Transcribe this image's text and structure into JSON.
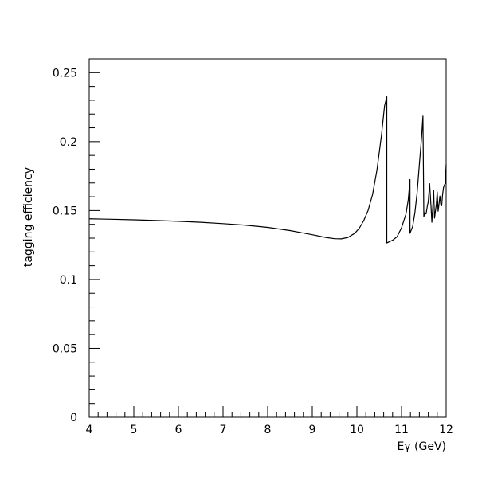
{
  "chart_data": {
    "type": "line",
    "title": "",
    "xlabel": "Eγ (GeV)",
    "ylabel": "tagging efficiency",
    "xlim": [
      4,
      12
    ],
    "ylim": [
      0,
      0.26
    ],
    "x_ticks": [
      4,
      5,
      6,
      7,
      8,
      9,
      10,
      11,
      12
    ],
    "x_tick_labels": [
      "4",
      "5",
      "6",
      "7",
      "8",
      "9",
      "10",
      "11",
      "12"
    ],
    "y_ticks": [
      0,
      0.05,
      0.1,
      0.15,
      0.2,
      0.25
    ],
    "y_tick_labels": [
      "0",
      "0.05",
      "0.1",
      "0.15",
      "0.2",
      "0.25"
    ],
    "x_minor_step": 0.2,
    "y_minor_step": 0.01,
    "grid": false,
    "legend": "none",
    "line_color": "#000000",
    "series": [
      {
        "x": [
          4.0,
          4.5,
          5.0,
          5.5,
          6.0,
          6.5,
          7.0,
          7.5,
          8.0,
          8.5,
          9.0,
          9.3,
          9.5,
          9.65,
          9.8,
          9.95,
          10.05,
          10.15,
          10.25,
          10.35,
          10.45,
          10.55,
          10.62,
          10.67,
          10.67,
          10.8,
          10.9,
          11.0,
          11.1,
          11.15,
          11.19,
          11.19,
          11.25,
          11.3,
          11.35,
          11.4,
          11.45,
          11.48,
          11.5,
          11.52,
          11.55,
          11.58,
          11.6,
          11.63,
          11.66,
          11.68,
          11.7,
          11.72,
          11.74,
          11.76,
          11.78,
          11.8,
          11.82,
          11.84,
          11.86,
          11.88,
          11.9,
          11.92,
          11.94,
          11.96,
          11.98,
          12.0
        ],
        "y": [
          0.144,
          0.1437,
          0.1433,
          0.1428,
          0.1422,
          0.1415,
          0.1405,
          0.1394,
          0.1378,
          0.1355,
          0.1325,
          0.1305,
          0.1296,
          0.1295,
          0.1305,
          0.1335,
          0.137,
          0.1425,
          0.15,
          0.1615,
          0.1795,
          0.2045,
          0.226,
          0.2325,
          0.1265,
          0.1285,
          0.131,
          0.1375,
          0.1475,
          0.1575,
          0.1725,
          0.1335,
          0.1385,
          0.1485,
          0.163,
          0.1835,
          0.2035,
          0.2185,
          0.1455,
          0.1485,
          0.1475,
          0.1535,
          0.1565,
          0.1695,
          0.1535,
          0.1415,
          0.1525,
          0.1645,
          0.1445,
          0.1495,
          0.1545,
          0.1635,
          0.1495,
          0.1545,
          0.1605,
          0.1545,
          0.1535,
          0.1615,
          0.1665,
          0.1685,
          0.1695,
          0.1835
        ]
      }
    ]
  }
}
